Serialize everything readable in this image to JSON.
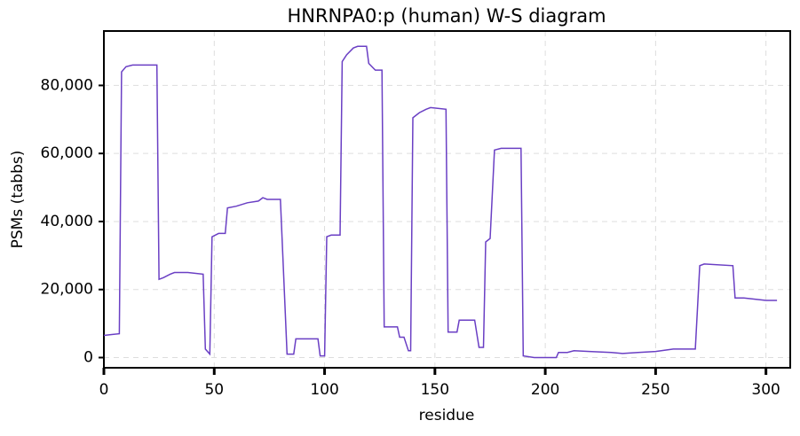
{
  "chart_data": {
    "type": "line",
    "title": "HNRNPA0:p (human) W-S diagram",
    "xlabel": "residue",
    "ylabel": "PSMs (tabbs)",
    "color": "#6a3fc4",
    "grid": true,
    "x": [
      0,
      7,
      8,
      10,
      13,
      24,
      25,
      27,
      30,
      32,
      38,
      45,
      46,
      48,
      49,
      52,
      55,
      56,
      60,
      65,
      70,
      72,
      74,
      80,
      83,
      86,
      87,
      97,
      98,
      100,
      101,
      103,
      107,
      108,
      110,
      113,
      115,
      119,
      120,
      123,
      126,
      127,
      133,
      134,
      136,
      138,
      139,
      140,
      143,
      146,
      148,
      155,
      156,
      160,
      161,
      168,
      170,
      172,
      173,
      175,
      177,
      180,
      189,
      190,
      195,
      205,
      206,
      210,
      213,
      220,
      230,
      235,
      242,
      250,
      258,
      268,
      270,
      272,
      285,
      286,
      290,
      300,
      305
    ],
    "values": [
      6500,
      7000,
      84000,
      85500,
      86000,
      86000,
      23000,
      23500,
      24500,
      25000,
      25000,
      24500,
      2500,
      1000,
      35500,
      36500,
      36500,
      44000,
      44500,
      45500,
      46000,
      47000,
      46500,
      46500,
      1000,
      1000,
      5500,
      5500,
      500,
      500,
      35500,
      36000,
      36000,
      87000,
      89000,
      91000,
      91500,
      91500,
      86500,
      84500,
      84500,
      9000,
      9000,
      6000,
      6000,
      2000,
      2000,
      70500,
      72000,
      73000,
      73500,
      73000,
      7500,
      7500,
      11000,
      11000,
      3000,
      3000,
      34000,
      35000,
      61000,
      61500,
      61500,
      500,
      0,
      0,
      1500,
      1500,
      2000,
      1800,
      1500,
      1200,
      1500,
      1800,
      2500,
      2500,
      27000,
      27500,
      27000,
      17500,
      17500,
      16800,
      16800
    ],
    "xlim": [
      0,
      311
    ],
    "ylim": [
      -3000,
      96000
    ],
    "xticks": [
      0,
      50,
      100,
      150,
      200,
      250,
      300
    ],
    "yticks": [
      0,
      {
        "value": 20000,
        "label": "20,000"
      },
      {
        "value": 40000,
        "label": "40,000"
      },
      {
        "value": 60000,
        "label": "60,000"
      },
      {
        "value": 80000,
        "label": "80,000"
      }
    ]
  }
}
